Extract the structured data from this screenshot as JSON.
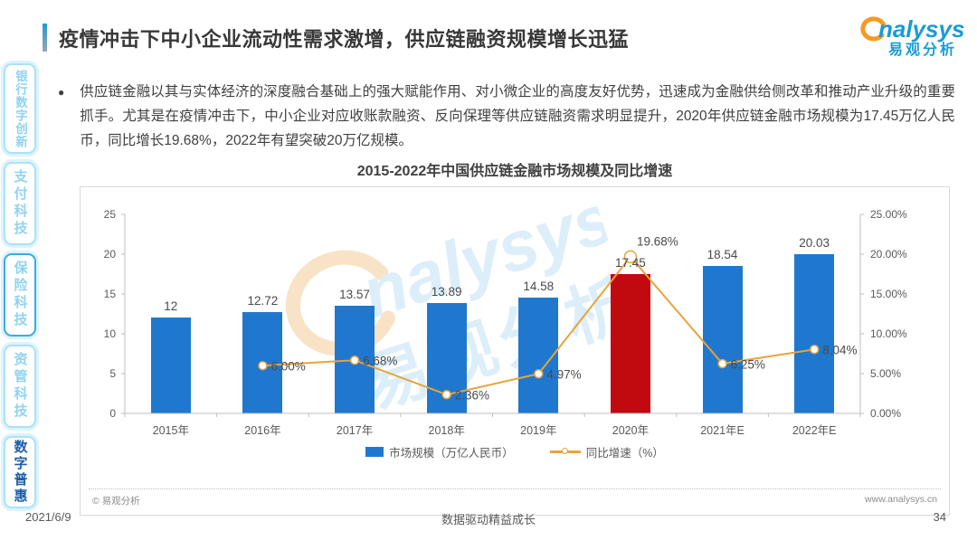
{
  "page": {
    "date": "2021/6/9",
    "footer_slogan": "数据驱动精益成长",
    "page_number": "34"
  },
  "header": {
    "title": "疫情冲击下中小企业流动性需求激增，供应链融资规模增长迅猛",
    "logo": {
      "wordmark": "nalysys",
      "cn": "易观分析"
    }
  },
  "sidebar": {
    "items": [
      {
        "label": "银行数字创新",
        "active": false
      },
      {
        "label": "支付科技",
        "active": false
      },
      {
        "label": "保险科技",
        "active": false
      },
      {
        "label": "资管科技",
        "active": false
      },
      {
        "label": "数字普惠",
        "active": true
      }
    ]
  },
  "content": {
    "bullet_text": "供应链金融以其与实体经济的深度融合基础上的强大赋能作用、对小微企业的高度友好优势，迅速成为金融供给侧改革和推动产业升级的重要抓手。尤其是在疫情冲击下，中小企业对应收账款融资、反向保理等供应链融资需求明显提升，2020年供应链金融市场规模为17.45万亿人民币，同比增长19.68%，2022年有望突破20万亿规模。"
  },
  "chart_data": {
    "type": "bar+line",
    "title": "2015-2022年中国供应链金融市场规模及同比增速",
    "categories": [
      "2015年",
      "2016年",
      "2017年",
      "2018年",
      "2019年",
      "2020年",
      "2021年E",
      "2022年E"
    ],
    "series": [
      {
        "name": "市场规模（万亿人民币）",
        "type": "bar",
        "values": [
          12,
          12.72,
          13.57,
          13.89,
          14.58,
          17.45,
          18.54,
          20.03
        ],
        "labels": [
          "12",
          "12.72",
          "13.57",
          "13.89",
          "14.58",
          "17.45",
          "18.54",
          "20.03"
        ]
      },
      {
        "name": "同比增速（%）",
        "type": "line",
        "values": [
          null,
          6.0,
          6.68,
          2.36,
          4.97,
          19.68,
          6.25,
          8.04
        ],
        "labels": [
          null,
          "6.00%",
          "6.68%",
          "2.36%",
          "4.97%",
          "19.68%",
          "6.25%",
          "8.04%"
        ]
      }
    ],
    "highlight_index": 5,
    "left_axis": {
      "min": 0,
      "max": 25,
      "ticks": [
        "0",
        "5",
        "10",
        "15",
        "20",
        "25"
      ]
    },
    "right_axis": {
      "min": 0,
      "max": 25,
      "ticks": [
        "0.00%",
        "5.00%",
        "10.00%",
        "15.00%",
        "20.00%",
        "25.00%"
      ]
    },
    "legend": [
      "市场规模（万亿人民币）",
      "同比增速（%）"
    ],
    "colors": {
      "bar": "#1F78CE",
      "bar_highlight": "#C00A0F",
      "line": "#E8A33C",
      "axis": "#BFBFBF"
    },
    "grid": false,
    "legend_position": "bottom",
    "source_note": "© 易观分析",
    "source_url": "www.analysys.cn"
  }
}
